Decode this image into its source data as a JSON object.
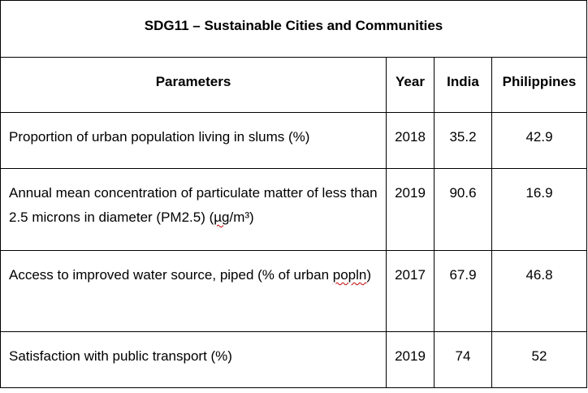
{
  "table": {
    "title": "SDG11 – Sustainable Cities and Communities",
    "headers": {
      "parameters": "Parameters",
      "year": "Year",
      "india": "India",
      "philippines": "Philippines"
    },
    "rows": [
      {
        "parameter": "Proportion of urban population living in slums (%)",
        "year": "2018",
        "india": "35.2",
        "philippines": "42.9"
      },
      {
        "parameter_main": "Annual mean concentration of particulate matter of less than 2.5 microns in diameter (PM2.5) (",
        "parameter_unit": "µg",
        "parameter_tail": "/m³)",
        "year": "2019",
        "india": "90.6",
        "philippines": "16.9"
      },
      {
        "parameter_main": "Access to improved water source, piped (% of urban ",
        "parameter_unit": "popln",
        "parameter_tail": ")",
        "year": "2017",
        "india": "67.9",
        "philippines": "46.8"
      },
      {
        "parameter": "Satisfaction with public transport (%)",
        "year": "2019",
        "india": "74",
        "philippines": "52"
      }
    ]
  }
}
